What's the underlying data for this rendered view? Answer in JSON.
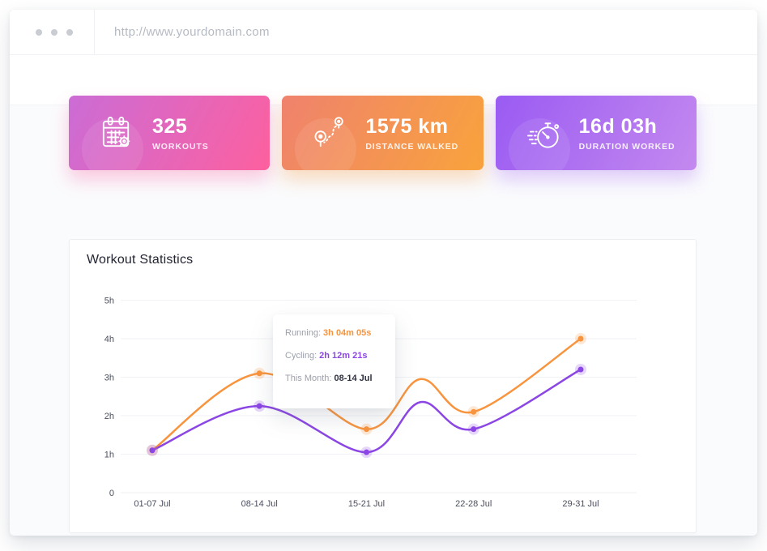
{
  "browser": {
    "url": "http://www.yourdomain.com"
  },
  "stat_cards": [
    {
      "value": "325",
      "label": "WORKOUTS",
      "icon": "calendar-gear-icon",
      "gradient": [
        "#cb6cd6",
        "#fd609f"
      ],
      "shadow": "rgba(249,97,160,0.32)"
    },
    {
      "value": "1575 km",
      "label": "DISTANCE WALKED",
      "icon": "route-pins-icon",
      "gradient": [
        "#ef826d",
        "#f9a33c"
      ],
      "shadow": "rgba(247,152,64,0.32)"
    },
    {
      "value": "16d 03h",
      "label": "DURATION WORKED",
      "icon": "stopwatch-icon",
      "gradient": [
        "#9a5bf2",
        "#c489ef"
      ],
      "shadow": "rgba(164,104,240,0.32)"
    }
  ],
  "chart_card": {
    "title": "Workout Statistics",
    "tooltip": {
      "rows": [
        {
          "label": "Running:",
          "value": "3h 04m 05s",
          "color": "#f8943e"
        },
        {
          "label": "Cycling:",
          "value": "2h 12m 21s",
          "color": "#8b46e4"
        },
        {
          "label": "This Month:",
          "value": "08-14 Jul",
          "color": "#2f3140"
        }
      ]
    }
  },
  "chart_data": {
    "type": "line",
    "title": "Workout Statistics",
    "categories": [
      "01-07 Jul",
      "08-14 Jul",
      "15-21 Jul",
      "22-28 Jul",
      "29-31 Jul"
    ],
    "y_ticks": [
      "0",
      "1h",
      "2h",
      "3h",
      "4h",
      "5h"
    ],
    "ylim": [
      0,
      5
    ],
    "unit": "hours",
    "grid": "horizontal",
    "legend": "none",
    "smooth": true,
    "series": [
      {
        "name": "Running",
        "color": "#f8943e",
        "marker_values": [
          1.1,
          3.1,
          1.65,
          2.1,
          4.0
        ],
        "curve": [
          [
            0,
            1.1
          ],
          [
            1,
            3.1
          ],
          [
            2,
            1.65
          ],
          [
            2.5,
            2.95
          ],
          [
            3,
            2.1
          ],
          [
            4,
            4.0
          ]
        ]
      },
      {
        "name": "Cycling",
        "color": "#8b46e4",
        "marker_values": [
          1.1,
          2.25,
          1.05,
          1.65,
          3.2
        ],
        "curve": [
          [
            0,
            1.1
          ],
          [
            1,
            2.25
          ],
          [
            2,
            1.05
          ],
          [
            2.5,
            2.35
          ],
          [
            3,
            1.65
          ],
          [
            4,
            3.2
          ]
        ]
      }
    ]
  }
}
